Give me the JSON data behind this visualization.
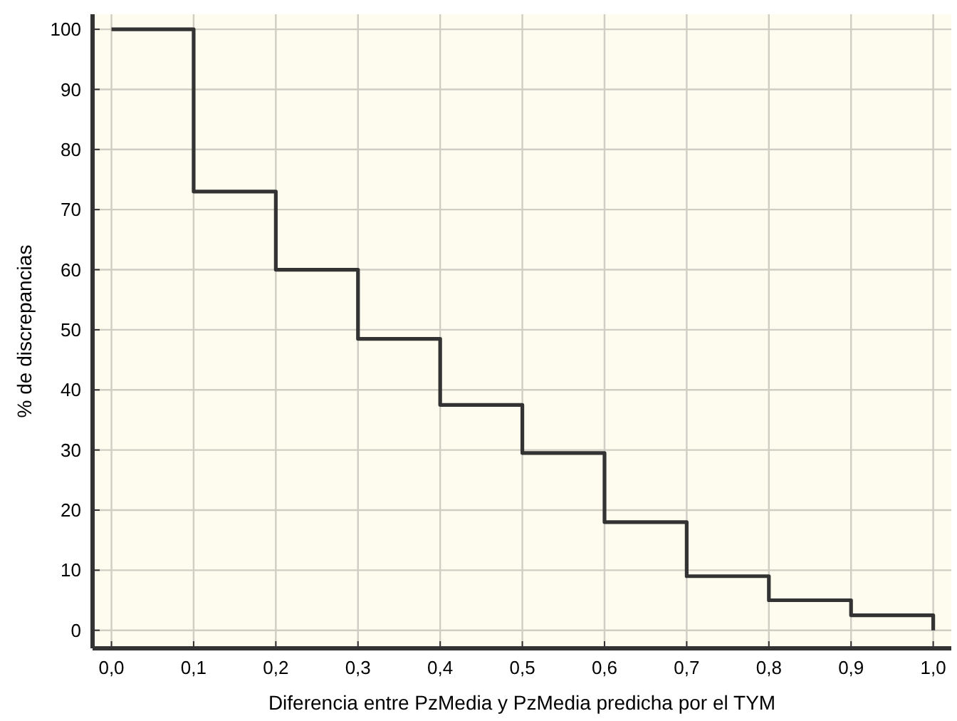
{
  "chart_data": {
    "type": "step",
    "xlabel": "Diferencia entre PzMedia y PzMedia predicha por el TYM",
    "ylabel": "% de discrepancias",
    "x": [
      0,
      0.1,
      0.2,
      0.3,
      0.4,
      0.5,
      0.6,
      0.7,
      0.8,
      0.9,
      1.0
    ],
    "series": [
      {
        "color": "#333333",
        "values": [
          100,
          73,
          60,
          48.5,
          37.5,
          29.5,
          18,
          9,
          5,
          2.5,
          0
        ]
      }
    ],
    "xlim": [
      -0.023,
      1.022
    ],
    "ylim": [
      -3,
      102.5
    ],
    "xticks": [
      {
        "value": 0,
        "label": "0,0"
      },
      {
        "value": 0.1,
        "label": "0,1"
      },
      {
        "value": 0.2,
        "label": "0,2"
      },
      {
        "value": 0.3,
        "label": "0,3"
      },
      {
        "value": 0.4,
        "label": "0,4"
      },
      {
        "value": 0.5,
        "label": "0,5"
      },
      {
        "value": 0.6,
        "label": "0,6"
      },
      {
        "value": 0.7,
        "label": "0,7"
      },
      {
        "value": 0.8,
        "label": "0,8"
      },
      {
        "value": 0.9,
        "label": "0,9"
      },
      {
        "value": 1.0,
        "label": "1,0"
      }
    ],
    "yticks": [
      0,
      10,
      20,
      30,
      40,
      50,
      60,
      70,
      80,
      90,
      100
    ],
    "grid": true,
    "marker": "none",
    "line_style": "solid"
  }
}
